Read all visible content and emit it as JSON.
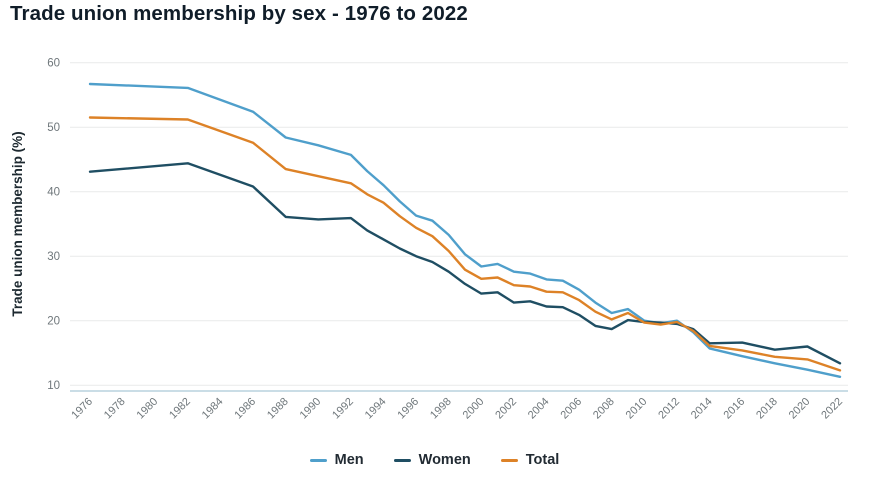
{
  "title": "Trade union membership by sex - 1976 to 2022",
  "chart_data": {
    "type": "line",
    "title": "Trade union membership by sex - 1976 to 2022",
    "xlabel": "",
    "ylabel": "Trade union membership (%)",
    "ylim": [
      10,
      60
    ],
    "xlim": [
      1976,
      2022
    ],
    "yticks": [
      10,
      20,
      30,
      40,
      50,
      60
    ],
    "x_tick_labels": [
      "1976",
      "1978",
      "1980",
      "1982",
      "1984",
      "1986",
      "1988",
      "1990",
      "1992",
      "1994",
      "1996",
      "1998",
      "2000",
      "2002",
      "2004",
      "2006",
      "2008",
      "2010",
      "2012",
      "2014",
      "2016",
      "2018",
      "2020",
      "2022"
    ],
    "grid": "horizontal",
    "legend_position": "bottom-center",
    "series": [
      {
        "name": "Men",
        "color": "#4f9fcb",
        "points": [
          [
            1976,
            56.7
          ],
          [
            1982,
            56.1
          ],
          [
            1986,
            52.4
          ],
          [
            1988,
            48.4
          ],
          [
            1990,
            47.2
          ],
          [
            1992,
            45.7
          ],
          [
            1993,
            43.2
          ],
          [
            1994,
            41.0
          ],
          [
            1995,
            38.5
          ],
          [
            1996,
            36.3
          ],
          [
            1997,
            35.5
          ],
          [
            1998,
            33.3
          ],
          [
            1999,
            30.3
          ],
          [
            2000,
            28.4
          ],
          [
            2001,
            28.8
          ],
          [
            2002,
            27.6
          ],
          [
            2003,
            27.3
          ],
          [
            2004,
            26.4
          ],
          [
            2005,
            26.2
          ],
          [
            2006,
            24.8
          ],
          [
            2007,
            22.8
          ],
          [
            2008,
            21.2
          ],
          [
            2009,
            21.8
          ],
          [
            2010,
            20.0
          ],
          [
            2011,
            19.6
          ],
          [
            2012,
            20.0
          ],
          [
            2013,
            18.2
          ],
          [
            2014,
            15.7
          ],
          [
            2016,
            14.5
          ],
          [
            2018,
            13.4
          ],
          [
            2020,
            12.4
          ],
          [
            2022,
            11.3
          ]
        ]
      },
      {
        "name": "Women",
        "color": "#1f4e63",
        "points": [
          [
            1976,
            43.1
          ],
          [
            1982,
            44.4
          ],
          [
            1986,
            40.8
          ],
          [
            1988,
            36.1
          ],
          [
            1990,
            35.7
          ],
          [
            1992,
            35.9
          ],
          [
            1993,
            34.0
          ],
          [
            1994,
            32.6
          ],
          [
            1995,
            31.2
          ],
          [
            1996,
            30.0
          ],
          [
            1997,
            29.1
          ],
          [
            1998,
            27.6
          ],
          [
            1999,
            25.7
          ],
          [
            2000,
            24.2
          ],
          [
            2001,
            24.4
          ],
          [
            2002,
            22.8
          ],
          [
            2003,
            23.0
          ],
          [
            2004,
            22.2
          ],
          [
            2005,
            22.1
          ],
          [
            2006,
            20.9
          ],
          [
            2007,
            19.2
          ],
          [
            2008,
            18.7
          ],
          [
            2009,
            20.1
          ],
          [
            2010,
            19.8
          ],
          [
            2011,
            19.7
          ],
          [
            2012,
            19.5
          ],
          [
            2013,
            18.7
          ],
          [
            2014,
            16.5
          ],
          [
            2016,
            16.6
          ],
          [
            2018,
            15.5
          ],
          [
            2020,
            16.0
          ],
          [
            2022,
            13.4
          ]
        ]
      },
      {
        "name": "Total",
        "color": "#dd8227",
        "points": [
          [
            1976,
            51.5
          ],
          [
            1982,
            51.2
          ],
          [
            1986,
            47.6
          ],
          [
            1988,
            43.5
          ],
          [
            1990,
            42.4
          ],
          [
            1992,
            41.3
          ],
          [
            1993,
            39.6
          ],
          [
            1994,
            38.3
          ],
          [
            1995,
            36.2
          ],
          [
            1996,
            34.4
          ],
          [
            1997,
            33.1
          ],
          [
            1998,
            30.8
          ],
          [
            1999,
            27.9
          ],
          [
            2000,
            26.5
          ],
          [
            2001,
            26.7
          ],
          [
            2002,
            25.5
          ],
          [
            2003,
            25.3
          ],
          [
            2004,
            24.5
          ],
          [
            2005,
            24.4
          ],
          [
            2006,
            23.2
          ],
          [
            2007,
            21.4
          ],
          [
            2008,
            20.2
          ],
          [
            2009,
            21.2
          ],
          [
            2010,
            19.7
          ],
          [
            2011,
            19.4
          ],
          [
            2012,
            19.8
          ],
          [
            2013,
            18.4
          ],
          [
            2014,
            16.1
          ],
          [
            2016,
            15.4
          ],
          [
            2018,
            14.4
          ],
          [
            2020,
            14.0
          ],
          [
            2022,
            12.3
          ]
        ]
      }
    ],
    "colors": {
      "grid": "#e9eaea",
      "axis_line": "#b9d2de",
      "tick_text": "#6f777b",
      "title_text": "#101d29",
      "legend_text": "#222b33"
    }
  }
}
